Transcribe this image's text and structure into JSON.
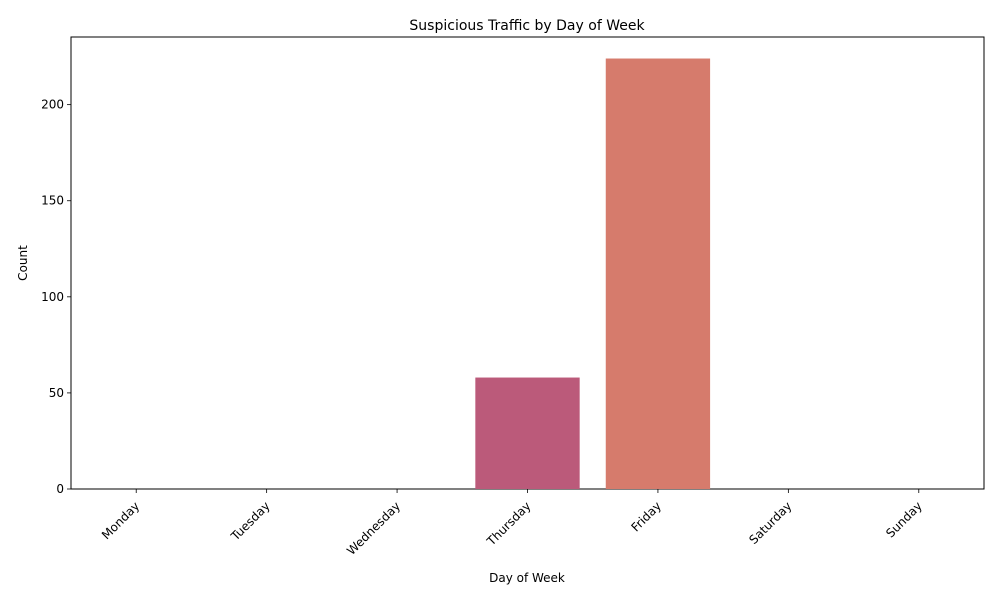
{
  "chart_data": {
    "type": "bar",
    "title": "Suspicious Traffic by Day of Week",
    "xlabel": "Day of Week",
    "ylabel": "Count",
    "categories": [
      "Monday",
      "Tuesday",
      "Wednesday",
      "Thursday",
      "Friday",
      "Saturday",
      "Sunday"
    ],
    "values": [
      0,
      0,
      0,
      58,
      224,
      0,
      0
    ],
    "colors": [
      "#2d1e3e",
      "#4a2a63",
      "#752d7b",
      "#bb5a7a",
      "#d67b6c",
      "#e99c6e",
      "#f1c08a"
    ],
    "ylim": [
      0,
      235.2
    ],
    "yticks": [
      0,
      50,
      100,
      150,
      200
    ],
    "ytick_labels": [
      "0",
      "50",
      "100",
      "150",
      "200"
    ],
    "grid": false,
    "legend": "none"
  }
}
